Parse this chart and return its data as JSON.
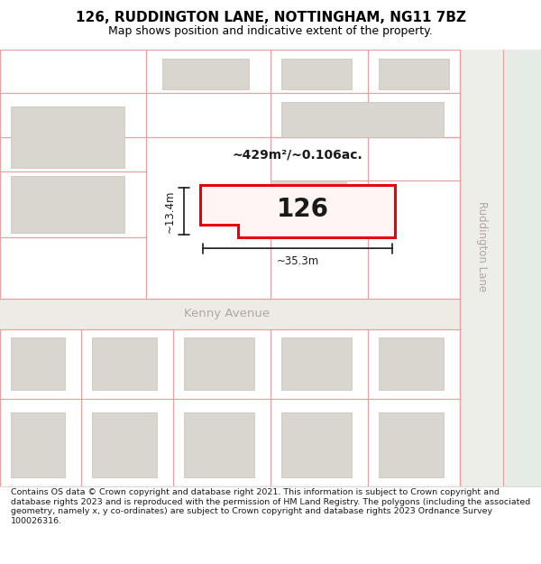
{
  "title": "126, RUDDINGTON LANE, NOTTINGHAM, NG11 7BZ",
  "subtitle": "Map shows position and indicative extent of the property.",
  "footer": "Contains OS data © Crown copyright and database right 2021. This information is subject to Crown copyright and database rights 2023 and is reproduced with the permission of HM Land Registry. The polygons (including the associated geometry, namely x, y co-ordinates) are subject to Crown copyright and database rights 2023 Ordnance Survey 100026316.",
  "map_bg": "#f5f1ee",
  "building_fill": "#d9d5cf",
  "building_edge": "#c8c0b8",
  "highlight_edge": "#e8000a",
  "highlight_fill": "#fff5f5",
  "pink_line": "#e8a0a0",
  "street_label_color": "#b0a8a0",
  "dim_color": "#1a1a1a",
  "area_label": "~429m²/~0.106ac.",
  "width_label": "~35.3m",
  "height_label": "~13.4m",
  "house_number": "126",
  "street_name": "Ruddington Lane",
  "avenue_name": "Kenny Avenue"
}
